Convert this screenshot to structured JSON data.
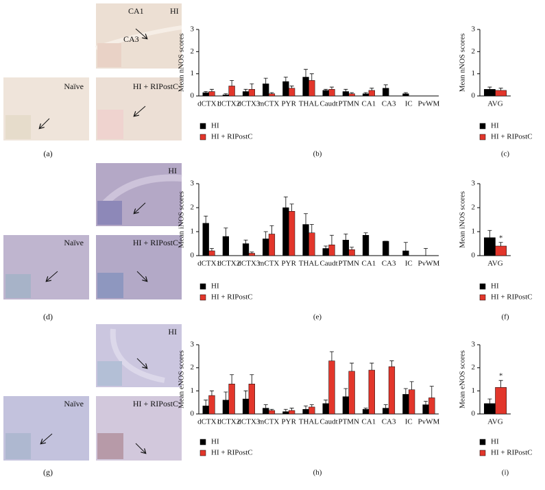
{
  "chart_data": [
    {
      "type": "bar",
      "label": "(b)",
      "ylabel": "Mean nNOS scores",
      "categories": [
        "dCTX1",
        "dCTX2",
        "dCTX3",
        "mCTX",
        "PYR",
        "THAL",
        "Caudt",
        "PTMN",
        "CA1",
        "CA3",
        "IC",
        "PvWM"
      ],
      "ylim": [
        0,
        3
      ],
      "yticks": [
        0,
        1,
        2,
        3
      ],
      "series": [
        {
          "name": "HI",
          "color": "#000000",
          "values": [
            0.15,
            0.05,
            0.2,
            0.55,
            0.65,
            0.85,
            0.25,
            0.2,
            0.1,
            0.35,
            0.1,
            0
          ],
          "errors": [
            0.05,
            0.05,
            0.1,
            0.25,
            0.2,
            0.35,
            0.05,
            0.1,
            0.05,
            0.15,
            0.05,
            0
          ]
        },
        {
          "name": "HI + RIPostC",
          "color": "#e2362b",
          "values": [
            0.2,
            0.45,
            0.3,
            0.1,
            0.35,
            0.7,
            0.3,
            0.1,
            0.25,
            0,
            0,
            0
          ],
          "errors": [
            0.1,
            0.25,
            0.25,
            0.05,
            0.1,
            0.3,
            0.1,
            0.05,
            0.1,
            0,
            0,
            0
          ]
        }
      ]
    },
    {
      "type": "bar",
      "label": "(c)",
      "ylabel": "Mean nNOS scores",
      "categories": [
        "AVG"
      ],
      "ylim": [
        0,
        3
      ],
      "yticks": [
        0,
        1,
        2,
        3
      ],
      "series": [
        {
          "name": "HI",
          "color": "#000000",
          "values": [
            0.3
          ],
          "errors": [
            0.1
          ]
        },
        {
          "name": "HI + RIPostC",
          "color": "#e2362b",
          "values": [
            0.25
          ],
          "errors": [
            0.1
          ]
        }
      ]
    },
    {
      "type": "bar",
      "label": "(e)",
      "ylabel": "Mean iNOS scores",
      "categories": [
        "dCTX1",
        "dCTX2",
        "dCTX3",
        "mCTX",
        "PYR",
        "THAL",
        "Caudt",
        "PTMN",
        "CA1",
        "CA3",
        "IC",
        "PvWM"
      ],
      "ylim": [
        0,
        3
      ],
      "yticks": [
        0,
        1,
        2,
        3
      ],
      "series": [
        {
          "name": "HI",
          "color": "#000000",
          "values": [
            1.35,
            0.8,
            0.5,
            0.7,
            2.0,
            1.3,
            0.3,
            0.65,
            0.85,
            0.6,
            0.2,
            0
          ],
          "errors": [
            0.3,
            0.35,
            0.15,
            0.3,
            0.45,
            0.45,
            0.1,
            0.25,
            0.1,
            0,
            0.35,
            0.3
          ]
        },
        {
          "name": "HI + RIPostC",
          "color": "#e2362b",
          "values": [
            0.2,
            0,
            0.1,
            0.9,
            1.85,
            0.95,
            0.45,
            0.25,
            0,
            0,
            0,
            0
          ],
          "errors": [
            0.1,
            0,
            0.05,
            0.35,
            0.3,
            0.35,
            0.4,
            0.1,
            0,
            0,
            0,
            0
          ]
        }
      ]
    },
    {
      "type": "bar",
      "label": "(f)",
      "ylabel": "Mean iNOS scores",
      "categories": [
        "AVG"
      ],
      "annotation": "*",
      "ylim": [
        0,
        3
      ],
      "yticks": [
        0,
        1,
        2,
        3
      ],
      "series": [
        {
          "name": "HI",
          "color": "#000000",
          "values": [
            0.75
          ],
          "errors": [
            0.3
          ]
        },
        {
          "name": "HI + RIPostC",
          "color": "#e2362b",
          "values": [
            0.4
          ],
          "errors": [
            0.15
          ]
        }
      ]
    },
    {
      "type": "bar",
      "label": "(h)",
      "ylabel": "Mean eNOS scores",
      "categories": [
        "dCTX1",
        "dCTX2",
        "dCTX3",
        "mCTX",
        "PYR",
        "THAL",
        "Caudt",
        "PTMN",
        "CA1",
        "CA3",
        "IC",
        "PvWM"
      ],
      "ylim": [
        0,
        3
      ],
      "yticks": [
        0,
        1,
        2,
        3
      ],
      "series": [
        {
          "name": "HI",
          "color": "#000000",
          "values": [
            0.35,
            0.6,
            0.65,
            0.25,
            0.1,
            0.2,
            0.45,
            0.75,
            0.2,
            0.25,
            0.85,
            0.4
          ],
          "errors": [
            0.25,
            0.35,
            0.35,
            0.15,
            0.1,
            0.15,
            0.15,
            0.35,
            0.05,
            0.15,
            0.25,
            0.15
          ]
        },
        {
          "name": "HI + RIPostC",
          "color": "#e2362b",
          "values": [
            0.8,
            1.3,
            1.3,
            0.15,
            0.15,
            0.3,
            2.3,
            1.85,
            1.9,
            2.05,
            1.05,
            0.7
          ],
          "errors": [
            0.2,
            0.4,
            0.4,
            0.05,
            0.1,
            0.1,
            0.4,
            0.35,
            0.3,
            0.25,
            0.35,
            0.5
          ]
        }
      ]
    },
    {
      "type": "bar",
      "label": "(i)",
      "ylabel": "Mean eNOS scores",
      "categories": [
        "AVG"
      ],
      "annotation": "*",
      "ylim": [
        0,
        3
      ],
      "yticks": [
        0,
        1,
        2,
        3
      ],
      "series": [
        {
          "name": "HI",
          "color": "#000000",
          "values": [
            0.45
          ],
          "errors": [
            0.2
          ]
        },
        {
          "name": "HI + RIPostC",
          "color": "#e2362b",
          "values": [
            1.15
          ],
          "errors": [
            0.3
          ]
        }
      ]
    }
  ],
  "micrographs": [
    {
      "label": "(a)",
      "images": [
        {
          "texts": [
            "CA1",
            "HI",
            "CA3"
          ]
        },
        {
          "texts": [
            "Naïve"
          ]
        },
        {
          "texts": [
            "HI + RIPostC"
          ]
        }
      ]
    },
    {
      "label": "(d)",
      "images": [
        {
          "texts": [
            "HI"
          ]
        },
        {
          "texts": [
            "Naïve"
          ]
        },
        {
          "texts": [
            "HI + RIPostC"
          ]
        }
      ]
    },
    {
      "label": "(g)",
      "images": [
        {
          "texts": [
            "HI"
          ]
        },
        {
          "texts": [
            "Naïve"
          ]
        },
        {
          "texts": [
            "HI + RIPostC"
          ]
        }
      ]
    }
  ]
}
